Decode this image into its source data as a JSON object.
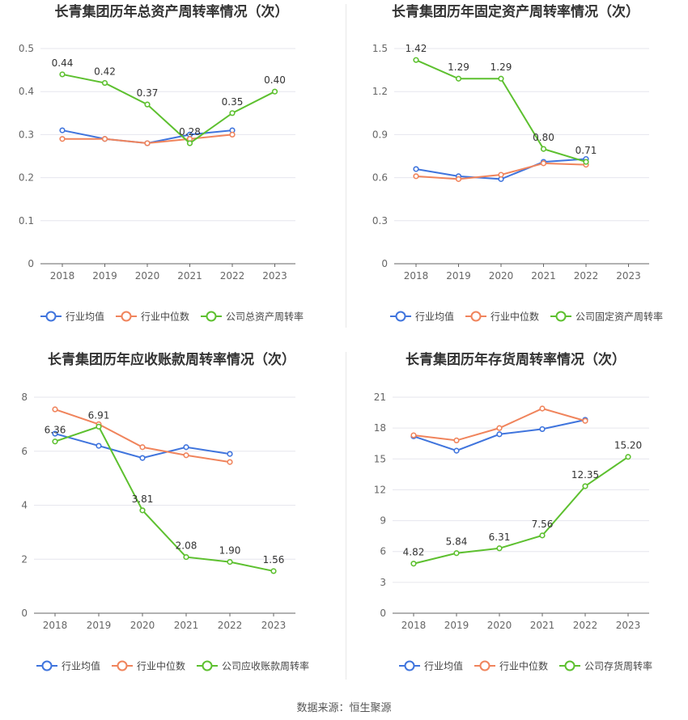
{
  "colors": {
    "company": "#5dc02f",
    "industry_avg": "#3f74dd",
    "industry_median": "#f0845c",
    "grid": "#e6e6ee",
    "axis": "#555555",
    "text": "#333333"
  },
  "legend_labels": {
    "industry_avg": "行业均值",
    "industry_median": "行业中位数"
  },
  "source": "数据来源：恒生聚源",
  "chart_data": [
    {
      "type": "line",
      "title": "长青集团历年总资产周转率情况（次）",
      "x": [
        "2018",
        "2019",
        "2020",
        "2021",
        "2022",
        "2023"
      ],
      "yticks": [
        "0",
        "0.1",
        "0.2",
        "0.3",
        "0.4",
        "0.5"
      ],
      "ylim": [
        0,
        0.5
      ],
      "legend_position": "bottom",
      "series": [
        {
          "key": "company",
          "name": "公司总资产周转率",
          "values": [
            0.44,
            0.42,
            0.37,
            0.28,
            0.35,
            0.4
          ],
          "labels": [
            "0.44",
            "0.42",
            "0.37",
            "0.28",
            "0.35",
            "0.40"
          ]
        },
        {
          "key": "industry_avg",
          "name": "行业均值",
          "values": [
            0.31,
            0.29,
            0.28,
            0.3,
            0.31,
            null
          ]
        },
        {
          "key": "industry_median",
          "name": "行业中位数",
          "values": [
            0.29,
            0.29,
            0.28,
            0.29,
            0.3,
            null
          ]
        }
      ]
    },
    {
      "type": "line",
      "title": "长青集团历年固定资产周转率情况（次）",
      "x": [
        "2018",
        "2019",
        "2020",
        "2021",
        "2022",
        "2023"
      ],
      "yticks": [
        "0",
        "0.3",
        "0.6",
        "0.9",
        "1.2",
        "1.5"
      ],
      "ylim": [
        0,
        1.5
      ],
      "legend_position": "bottom",
      "series": [
        {
          "key": "company",
          "name": "公司固定资产周转率",
          "values": [
            1.42,
            1.29,
            1.29,
            0.8,
            0.71,
            null
          ],
          "labels": [
            "1.42",
            "1.29",
            "1.29",
            "0.80",
            "0.71",
            ""
          ]
        },
        {
          "key": "industry_avg",
          "name": "行业均值",
          "values": [
            0.66,
            0.61,
            0.59,
            0.71,
            0.73,
            null
          ]
        },
        {
          "key": "industry_median",
          "name": "行业中位数",
          "values": [
            0.61,
            0.59,
            0.62,
            0.7,
            0.69,
            null
          ]
        }
      ]
    },
    {
      "type": "line",
      "title": "长青集团历年应收账款周转率情况（次）",
      "x": [
        "2018",
        "2019",
        "2020",
        "2021",
        "2022",
        "2023"
      ],
      "yticks": [
        "0",
        "2",
        "4",
        "6",
        "8"
      ],
      "ylim": [
        0,
        8
      ],
      "legend_position": "bottom",
      "series": [
        {
          "key": "company",
          "name": "公司应收账款周转率",
          "values": [
            6.36,
            6.91,
            3.81,
            2.08,
            1.9,
            1.56
          ],
          "labels": [
            "6.36",
            "6.91",
            "3.81",
            "2.08",
            "1.90",
            "1.56"
          ]
        },
        {
          "key": "industry_avg",
          "name": "行业均值",
          "values": [
            6.65,
            6.2,
            5.75,
            6.15,
            5.9,
            null
          ]
        },
        {
          "key": "industry_median",
          "name": "行业中位数",
          "values": [
            7.55,
            7.0,
            6.15,
            5.85,
            5.6,
            null
          ]
        }
      ]
    },
    {
      "type": "line",
      "title": "长青集团历年存货周转率情况（次）",
      "x": [
        "2018",
        "2019",
        "2020",
        "2021",
        "2022",
        "2023"
      ],
      "yticks": [
        "0",
        "3",
        "6",
        "9",
        "12",
        "15",
        "18",
        "21"
      ],
      "ylim": [
        0,
        21
      ],
      "legend_position": "bottom",
      "series": [
        {
          "key": "company",
          "name": "公司存货周转率",
          "values": [
            4.82,
            5.84,
            6.31,
            7.56,
            12.35,
            15.2
          ],
          "labels": [
            "4.82",
            "5.84",
            "6.31",
            "7.56",
            "12.35",
            "15.20"
          ]
        },
        {
          "key": "industry_avg",
          "name": "行业均值",
          "values": [
            17.2,
            15.8,
            17.4,
            17.9,
            18.8,
            null
          ]
        },
        {
          "key": "industry_median",
          "name": "行业中位数",
          "values": [
            17.3,
            16.8,
            18.0,
            19.9,
            18.7,
            null
          ]
        }
      ]
    }
  ]
}
